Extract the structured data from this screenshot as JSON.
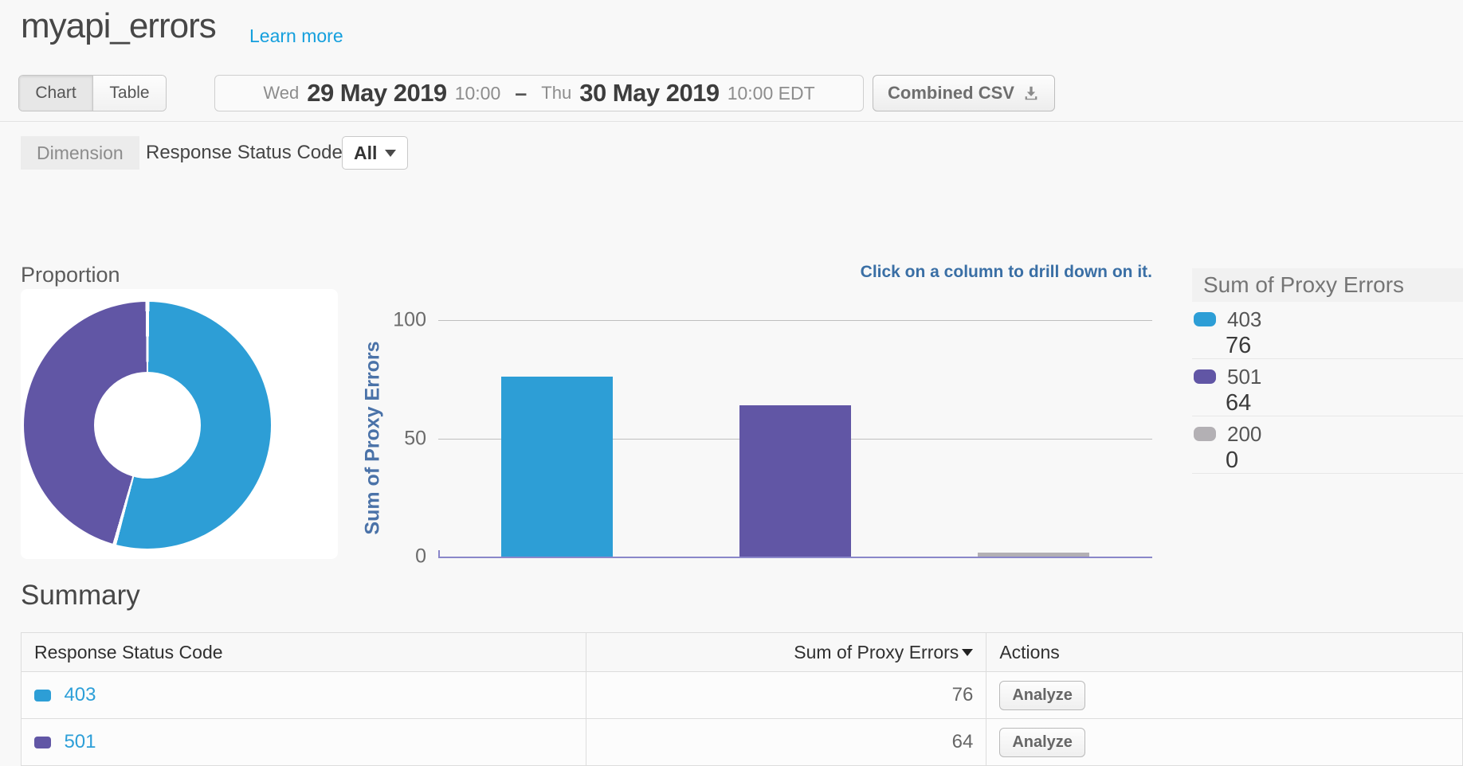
{
  "header": {
    "title": "myapi_errors",
    "learn_more": "Learn more"
  },
  "toolbar": {
    "view_toggle": {
      "chart": "Chart",
      "table": "Table",
      "active": "Chart"
    },
    "date_range": {
      "start_day": "Wed",
      "start_date": "29 May 2019",
      "start_time": "10:00",
      "separator": "–",
      "end_day": "Thu",
      "end_date": "30 May 2019",
      "end_time": "10:00 EDT"
    },
    "export_button": {
      "label": "Combined CSV",
      "icon": "download-icon"
    }
  },
  "dimension_bar": {
    "label": "Dimension",
    "dimension_name": "Response Status Code",
    "filter_value": "All",
    "filter_icon": "chevron-down-icon"
  },
  "chart_section": {
    "proportion_title": "Proportion",
    "drill_hint": "Click on a column to drill down on it.",
    "legend": {
      "title": "Sum of Proxy Errors",
      "entries": [
        {
          "label": "403",
          "value": "76",
          "color": "#2d9ed6"
        },
        {
          "label": "501",
          "value": "64",
          "color": "#6156a5"
        },
        {
          "label": "200",
          "value": "0",
          "color": "#b3b0b4"
        }
      ]
    }
  },
  "chart_data": [
    {
      "type": "pie",
      "subtype": "donut",
      "title": "Proportion",
      "labels": [
        "403",
        "501"
      ],
      "values": [
        76,
        64
      ],
      "colors": [
        "#2d9ed6",
        "#6156a5"
      ]
    },
    {
      "type": "bar",
      "categories": [
        "403",
        "501",
        "200"
      ],
      "values": [
        76,
        64,
        0
      ],
      "colors": [
        "#2d9ed6",
        "#6156a5",
        "#b3b0b4"
      ],
      "title": "",
      "xlabel": "",
      "ylabel": "Sum of Proxy Errors",
      "yticks": [
        0,
        50,
        100
      ],
      "ylim": [
        0,
        100
      ],
      "grid": true,
      "legend_position": "right"
    }
  ],
  "summary": {
    "title": "Summary",
    "table": {
      "columns": {
        "code": "Response Status Code",
        "value": "Sum of Proxy Errors",
        "actions": "Actions"
      },
      "rows": [
        {
          "code": "403",
          "color": "#2d9ed6",
          "value": "76",
          "action": "Analyze"
        },
        {
          "code": "501",
          "color": "#6156a5",
          "value": "64",
          "action": "Analyze"
        }
      ]
    }
  },
  "colors": {
    "accent_blue": "#2d9ed6",
    "accent_purple": "#6156a5",
    "neutral_gray": "#b3b0b4",
    "axis_line": "#8a87c9",
    "link": "#2d9fd8",
    "hint_text": "#3a6fa5"
  }
}
